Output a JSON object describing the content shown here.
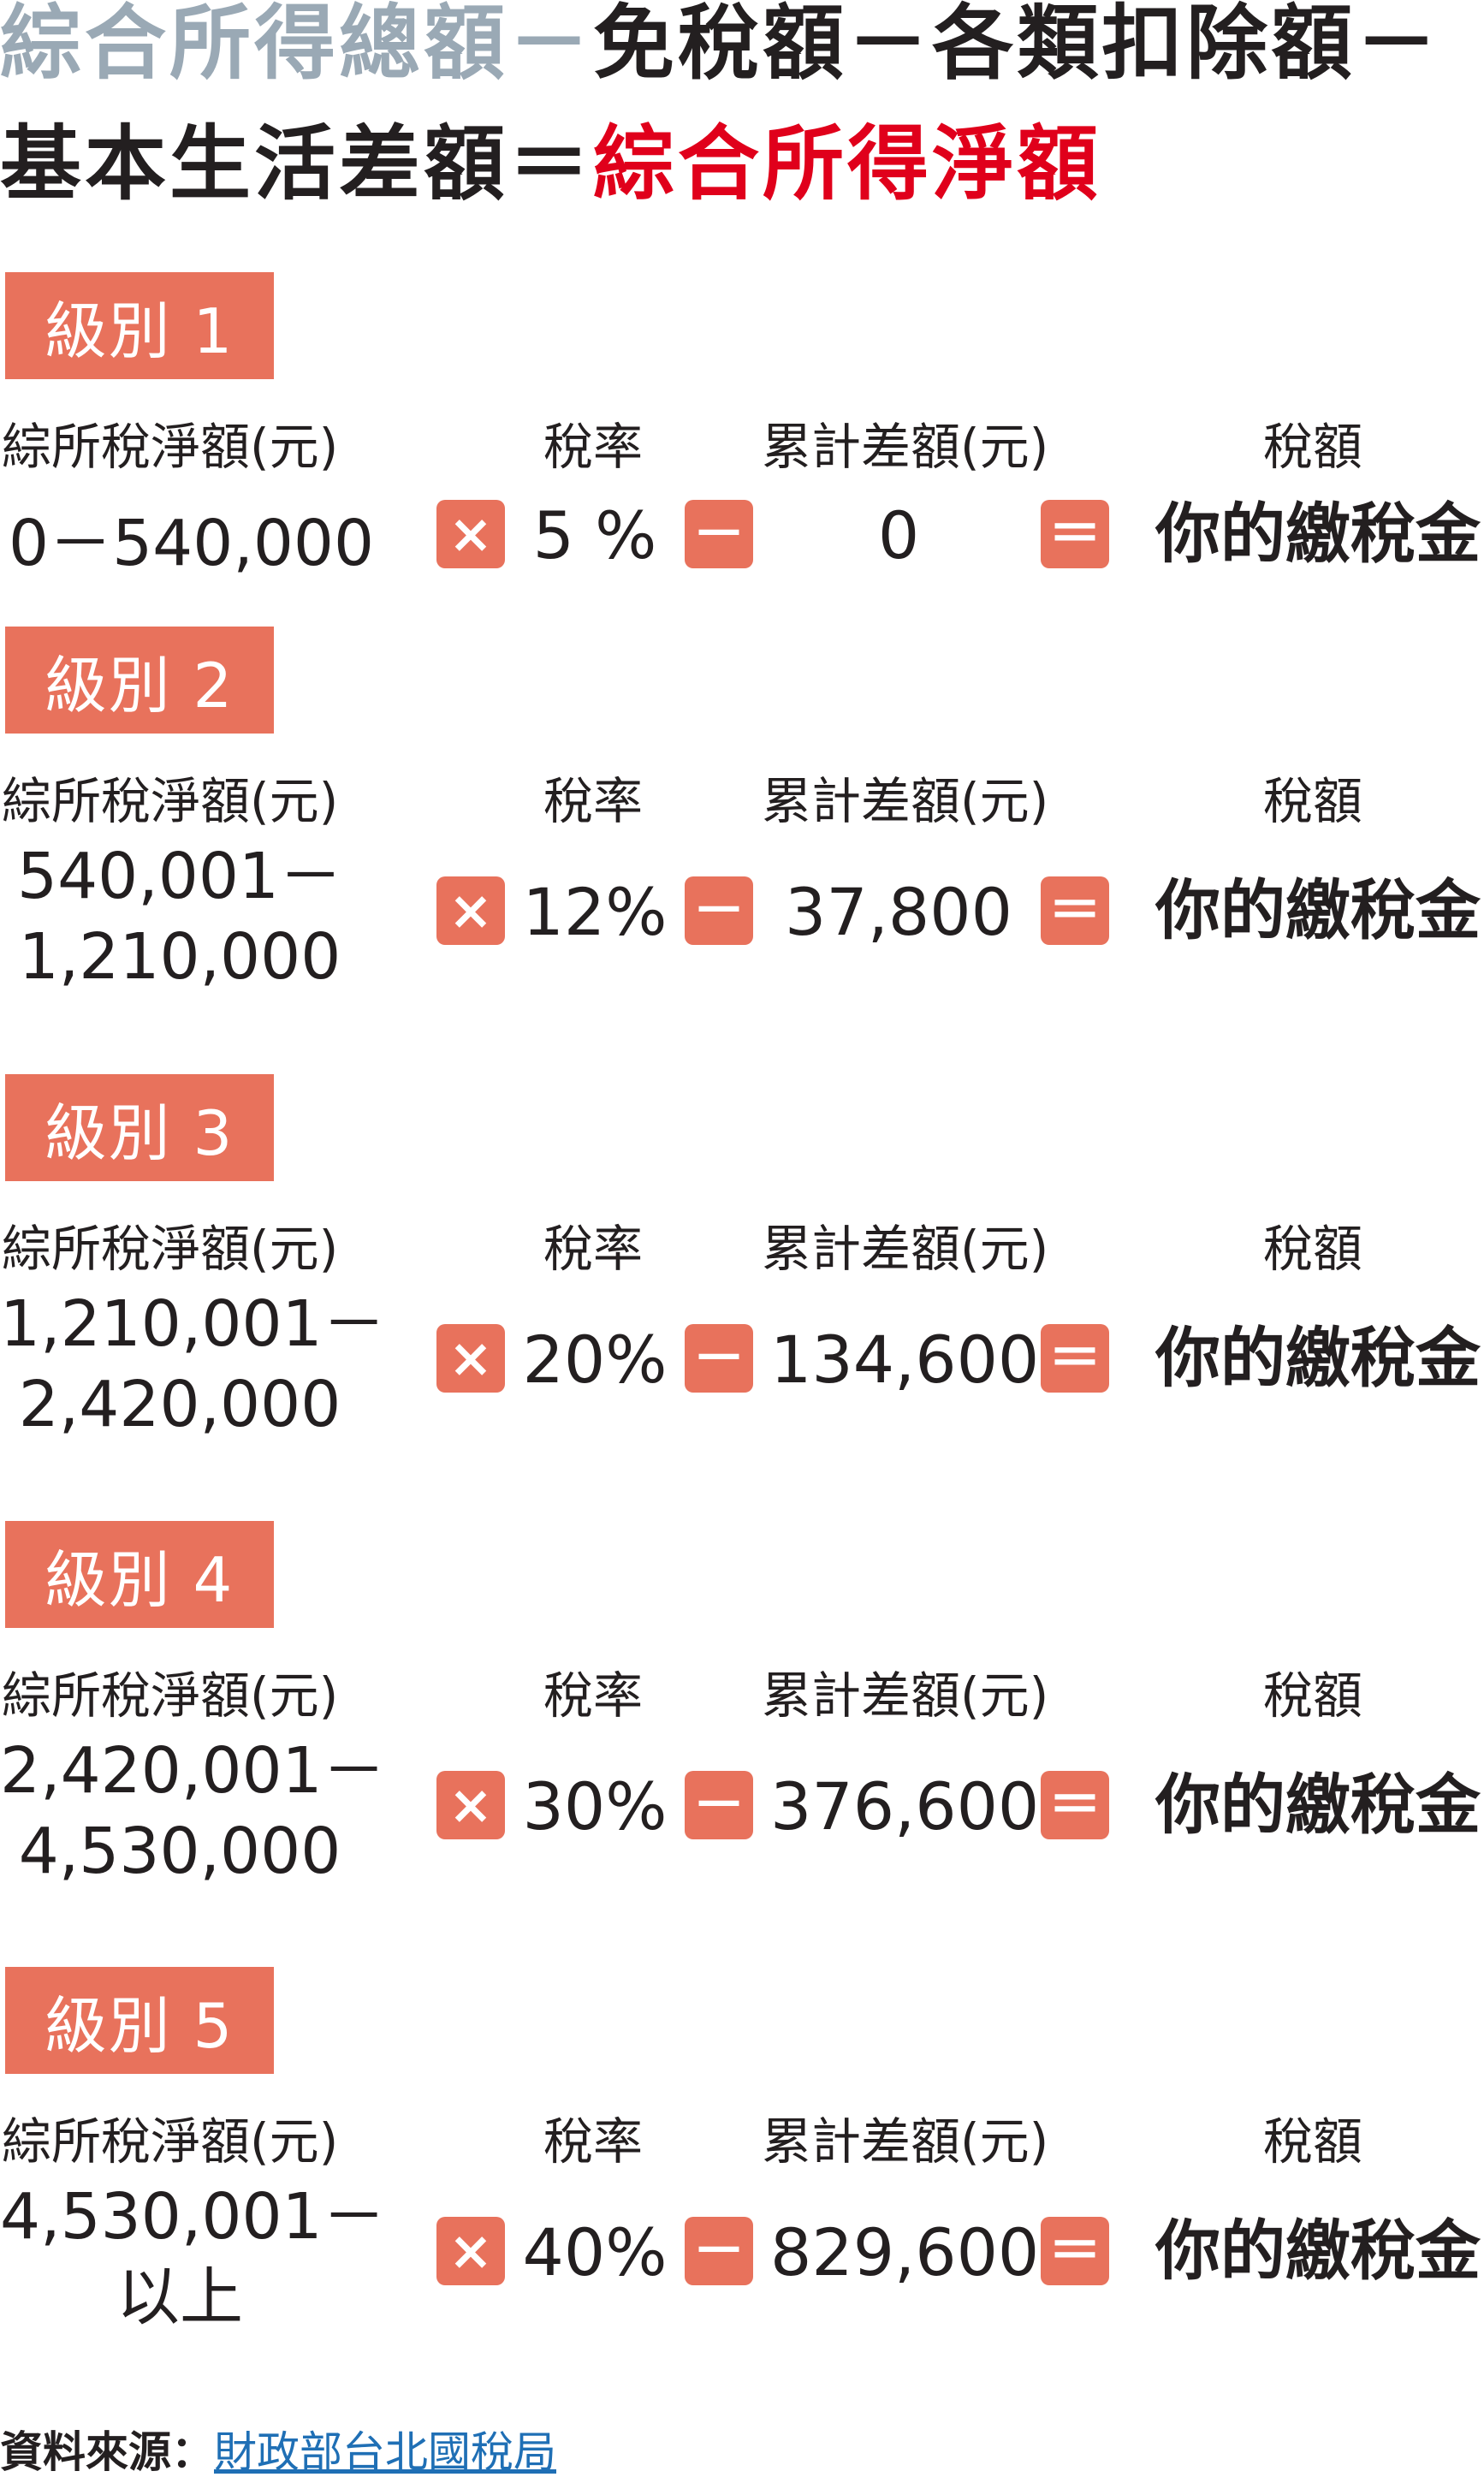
{
  "formula": {
    "line1": {
      "term1": "綜合所得總額",
      "op1": "－",
      "term2": "免稅額",
      "op2": "－",
      "term3": "各類扣除額",
      "op3": "－"
    },
    "line2": {
      "term4": "基本生活差額",
      "op4": "＝",
      "result": "綜合所得淨額"
    }
  },
  "headers": {
    "income": "綜所稅淨額(元)",
    "rate": "稅率",
    "deduction": "累計差額(元)",
    "tax": "稅額"
  },
  "operators": {
    "times": "×",
    "minus": "－",
    "equals": "＝"
  },
  "tiers": [
    {
      "label": "級別 1",
      "range_line1": "0－540,000",
      "range_line2": "",
      "rate": "5 %",
      "deduction": "0",
      "result": "你的繳稅金"
    },
    {
      "label": "級別 2",
      "range_line1": "540,001－",
      "range_line2": "1,210,000",
      "rate": "12%",
      "deduction": "37,800",
      "result": "你的繳稅金"
    },
    {
      "label": "級別 3",
      "range_line1": "1,210,001－",
      "range_line2": "2,420,000",
      "rate": "20%",
      "deduction": "134,600",
      "result": "你的繳稅金"
    },
    {
      "label": "級別 4",
      "range_line1": "2,420,001－",
      "range_line2": "4,530,000",
      "rate": "30%",
      "deduction": "376,600",
      "result": "你的繳稅金"
    },
    {
      "label": "級別 5",
      "range_line1": "4,530,001－",
      "range_line2": "以上",
      "rate": "40%",
      "deduction": "829,600",
      "result": "你的繳稅金"
    }
  ],
  "source": {
    "label": "資料來源：",
    "link": "財政部台北國稅局"
  },
  "colors": {
    "accent": "#e8725c",
    "formula_gray": "#9aa9b5",
    "formula_red": "#e0001b",
    "text": "#231f20",
    "link": "#1f6fb5"
  }
}
